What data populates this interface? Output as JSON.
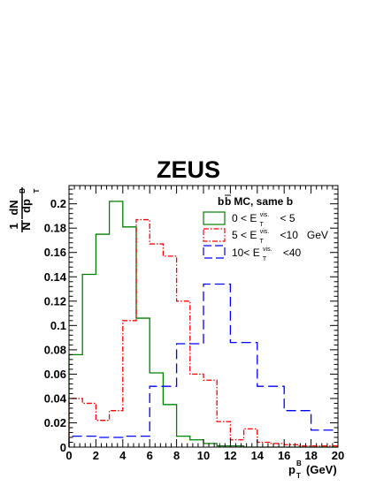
{
  "chart_data": {
    "type": "line",
    "title": "ZEUS",
    "xlabel": {
      "main": "p",
      "sub": "T",
      "sup": "B",
      "unit": "(GeV)"
    },
    "ylabel": {
      "numerator": "1",
      "denominator": "N",
      "dN": "dN",
      "dp": "dp",
      "sup": "B",
      "sub": "T"
    },
    "xlim": [
      0,
      20
    ],
    "ylim": [
      0,
      0.215
    ],
    "x_ticks": [
      0,
      2,
      4,
      6,
      8,
      10,
      12,
      14,
      16,
      18,
      20
    ],
    "y_ticks": [
      0.02,
      0.04,
      0.06,
      0.08,
      0.1,
      0.12,
      0.14,
      0.16,
      0.18,
      0.2
    ],
    "y_tick_labels": [
      "0.02",
      "0.04",
      "0.06",
      "0.08",
      "0.1",
      "0.12",
      "0.14",
      "0.16",
      "0.18",
      "0.2"
    ],
    "x_tick_labels": [
      "0",
      "2",
      "4",
      "6",
      "8",
      "10",
      "12",
      "14",
      "16",
      "18",
      "20"
    ],
    "y_zero_label": "0",
    "grid": false,
    "legend": {
      "position": "top-right",
      "title_main": "b",
      "title_bar": "b",
      "title_rest": " MC, same b",
      "entries": [
        {
          "pre": "0 < E",
          "sup": "vis.",
          "sub": "T",
          "post": " < 5",
          "color": "#008000",
          "dash": "solid"
        },
        {
          "pre": "5 < E",
          "sup": "vis.",
          "sub": "T",
          "post": " <10   GeV",
          "color": "#ff0000",
          "dash": "dashdot"
        },
        {
          "pre": "10< E",
          "sup": "vis.",
          "sub": "T",
          "post": " <40",
          "color": "#0000ff",
          "dash": "dashed"
        }
      ]
    },
    "bin_edges": [
      0,
      1,
      2,
      3,
      4,
      5,
      6,
      7,
      8,
      9,
      10,
      11,
      12,
      13,
      14,
      15,
      16,
      17,
      18,
      19,
      20
    ],
    "series": [
      {
        "name": "0 < E_T^vis. < 5",
        "color": "#008000",
        "dash": "solid",
        "values": [
          0.076,
          0.142,
          0.175,
          0.202,
          0.181,
          0.106,
          0.061,
          0.035,
          0.009,
          0.006,
          0.003,
          0.001,
          0.001,
          0.0,
          0.0,
          0.0,
          0.0,
          0.0,
          0.0,
          0.0
        ]
      },
      {
        "name": "5 < E_T^vis. <10 GeV",
        "color": "#ff0000",
        "dash": "dashdot",
        "values": [
          0.04,
          0.036,
          0.022,
          0.03,
          0.104,
          0.187,
          0.167,
          0.157,
          0.12,
          0.06,
          0.055,
          0.021,
          0.006,
          0.015,
          0.004,
          0.003,
          0.002,
          0.001,
          0.001,
          0.001
        ]
      },
      {
        "name": "10< E_T^vis. <40",
        "color": "#0000ff",
        "dash": "dashed",
        "values": [
          0.009,
          0.009,
          0.008,
          0.008,
          0.009,
          0.009,
          0.05,
          0.05,
          0.085,
          0.085,
          0.134,
          0.134,
          0.086,
          0.086,
          0.05,
          0.05,
          0.03,
          0.03,
          0.014,
          0.014
        ]
      }
    ]
  }
}
